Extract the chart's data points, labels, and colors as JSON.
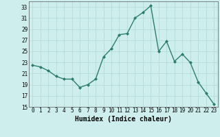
{
  "x": [
    0,
    1,
    2,
    3,
    4,
    5,
    6,
    7,
    8,
    9,
    10,
    11,
    12,
    13,
    14,
    15,
    16,
    17,
    18,
    19,
    20,
    21,
    22,
    23
  ],
  "y": [
    22.5,
    22.2,
    21.5,
    20.5,
    20.0,
    20.0,
    18.5,
    19.0,
    20.0,
    24.0,
    25.5,
    28.0,
    28.2,
    31.0,
    32.0,
    33.2,
    25.0,
    26.8,
    23.2,
    24.5,
    23.0,
    19.5,
    17.5,
    15.5
  ],
  "line_color": "#2a7d6e",
  "marker": "D",
  "marker_size": 2.0,
  "line_width": 1.0,
  "xlabel": "Humidex (Indice chaleur)",
  "xlim": [
    -0.5,
    23.5
  ],
  "ylim": [
    15,
    34
  ],
  "yticks": [
    15,
    17,
    19,
    21,
    23,
    25,
    27,
    29,
    31,
    33
  ],
  "xticks": [
    0,
    1,
    2,
    3,
    4,
    5,
    6,
    7,
    8,
    9,
    10,
    11,
    12,
    13,
    14,
    15,
    16,
    17,
    18,
    19,
    20,
    21,
    22,
    23
  ],
  "background_color": "#ceeeed",
  "grid_color": "#afd8d5",
  "tick_fontsize": 5.5,
  "xlabel_fontsize": 7.0
}
